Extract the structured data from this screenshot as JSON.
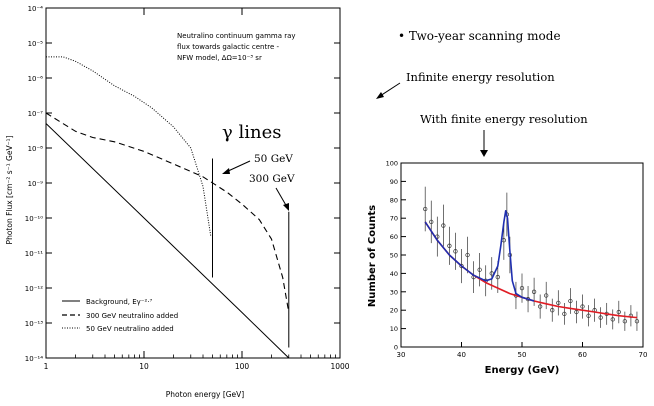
{
  "left_panel": {
    "annotation_lines": [
      "Neutralino continuum gamma ray",
      "flux towards galactic centre -",
      "NFW model, ΔΩ=10⁻³ sr"
    ],
    "gamma_lines_label": "γ lines",
    "line_label_50": "50 GeV",
    "line_label_300": "300 GeV",
    "legend": [
      "Background, Eγ⁻²·⁷",
      "300 GeV neutralino added",
      "50 GeV neutralino added"
    ]
  },
  "right_notes": {
    "bullet": "• Two-year scanning mode",
    "infinite": "Infinite energy resolution",
    "finite": "With finite energy resolution"
  },
  "chart_data": [
    {
      "type": "line",
      "xlabel": "Photon energy [GeV]",
      "ylabel": "Photon Flux [cm⁻² s⁻¹ GeV⁻¹]",
      "xscale": "log",
      "yscale": "log",
      "xlim": [
        1,
        1000
      ],
      "ylim": [
        1e-14,
        0.0001
      ],
      "x_ticks": [
        "1",
        "10",
        "100",
        "1000"
      ],
      "y_ticks": [
        "10⁻¹⁴",
        "10⁻¹³",
        "10⁻¹²",
        "10⁻¹¹",
        "10⁻¹⁰",
        "10⁻⁹",
        "10⁻⁸",
        "10⁻⁷",
        "10⁻⁶",
        "10⁻⁵",
        "10⁻⁴"
      ],
      "series": [
        {
          "name": "Background, Eγ⁻²·⁷",
          "style": "solid",
          "x": [
            1,
            10,
            100,
            300
          ],
          "y": [
            5e-08,
            1e-10,
            2e-13,
            1e-14
          ]
        },
        {
          "name": "300 GeV neutralino added",
          "style": "dashed",
          "x": [
            1,
            2,
            3,
            5,
            10,
            20,
            40,
            70,
            100,
            150,
            200,
            260,
            300
          ],
          "y": [
            1e-07,
            3e-08,
            2e-08,
            1.5e-08,
            8e-09,
            3.5e-09,
            1.5e-09,
            5.5e-10,
            2.5e-10,
            9e-11,
            2.5e-11,
            2e-12,
            2e-13
          ]
        },
        {
          "name": "50 GeV neutralino added",
          "style": "dotted",
          "x": [
            1,
            1.5,
            2,
            3,
            5,
            8,
            12,
            20,
            30,
            40,
            48
          ],
          "y": [
            4e-06,
            4e-06,
            3e-06,
            1.6e-06,
            6e-07,
            3e-07,
            1.4e-07,
            4e-08,
            1e-08,
            8e-10,
            3e-11
          ]
        },
        {
          "name": "γ line 50 GeV",
          "style": "solid",
          "x": [
            50,
            50
          ],
          "y": [
            2e-12,
            5e-09
          ]
        },
        {
          "name": "γ line 300 GeV",
          "style": "solid",
          "x": [
            300,
            300
          ],
          "y": [
            2e-14,
            1.5e-10
          ]
        }
      ]
    },
    {
      "type": "scatter",
      "xlabel": "Energy (GeV)",
      "ylabel": "Number of Counts",
      "xlim": [
        30,
        70
      ],
      "ylim": [
        0,
        100
      ],
      "x_ticks": [
        "30",
        "40",
        "50",
        "60",
        "70"
      ],
      "y_ticks": [
        "0",
        "10",
        "20",
        "30",
        "40",
        "50",
        "60",
        "70",
        "80",
        "90",
        "100"
      ],
      "points": {
        "x": [
          34,
          35,
          36,
          37,
          38,
          39,
          40,
          41,
          42,
          43,
          44,
          45,
          46,
          47,
          47.5,
          48,
          49,
          50,
          51,
          52,
          53,
          54,
          55,
          56,
          57,
          58,
          59,
          60,
          61,
          62,
          63,
          64,
          65,
          66,
          67,
          68,
          69
        ],
        "y": [
          75,
          68,
          60,
          66,
          55,
          52,
          44,
          50,
          38,
          42,
          36,
          40,
          38,
          58,
          72,
          50,
          28,
          32,
          26,
          30,
          22,
          28,
          20,
          24,
          18,
          25,
          19,
          22,
          17,
          20,
          16,
          18,
          15,
          19,
          14,
          17,
          14
        ]
      },
      "fits": [
        {
          "name": "background fit",
          "color": "#e01c24",
          "x": [
            34,
            36,
            38,
            40,
            42,
            44,
            46,
            48,
            50,
            52,
            54,
            56,
            58,
            60,
            62,
            64,
            66,
            68,
            69
          ],
          "y": [
            68,
            58,
            50,
            44,
            39,
            35,
            32,
            29,
            27,
            25,
            23.5,
            22,
            21,
            20,
            19,
            18,
            17,
            16.3,
            16
          ]
        },
        {
          "name": "line fit",
          "color": "#1f2fb0",
          "x": [
            34,
            36,
            38,
            40,
            42,
            44,
            45,
            46,
            46.5,
            47,
            47.3,
            47.6,
            48,
            48.4,
            49,
            50,
            52
          ],
          "y": [
            68,
            58,
            50,
            44,
            39,
            36,
            37,
            44,
            55,
            68,
            74,
            70,
            52,
            36,
            29,
            27,
            25
          ]
        }
      ]
    }
  ]
}
